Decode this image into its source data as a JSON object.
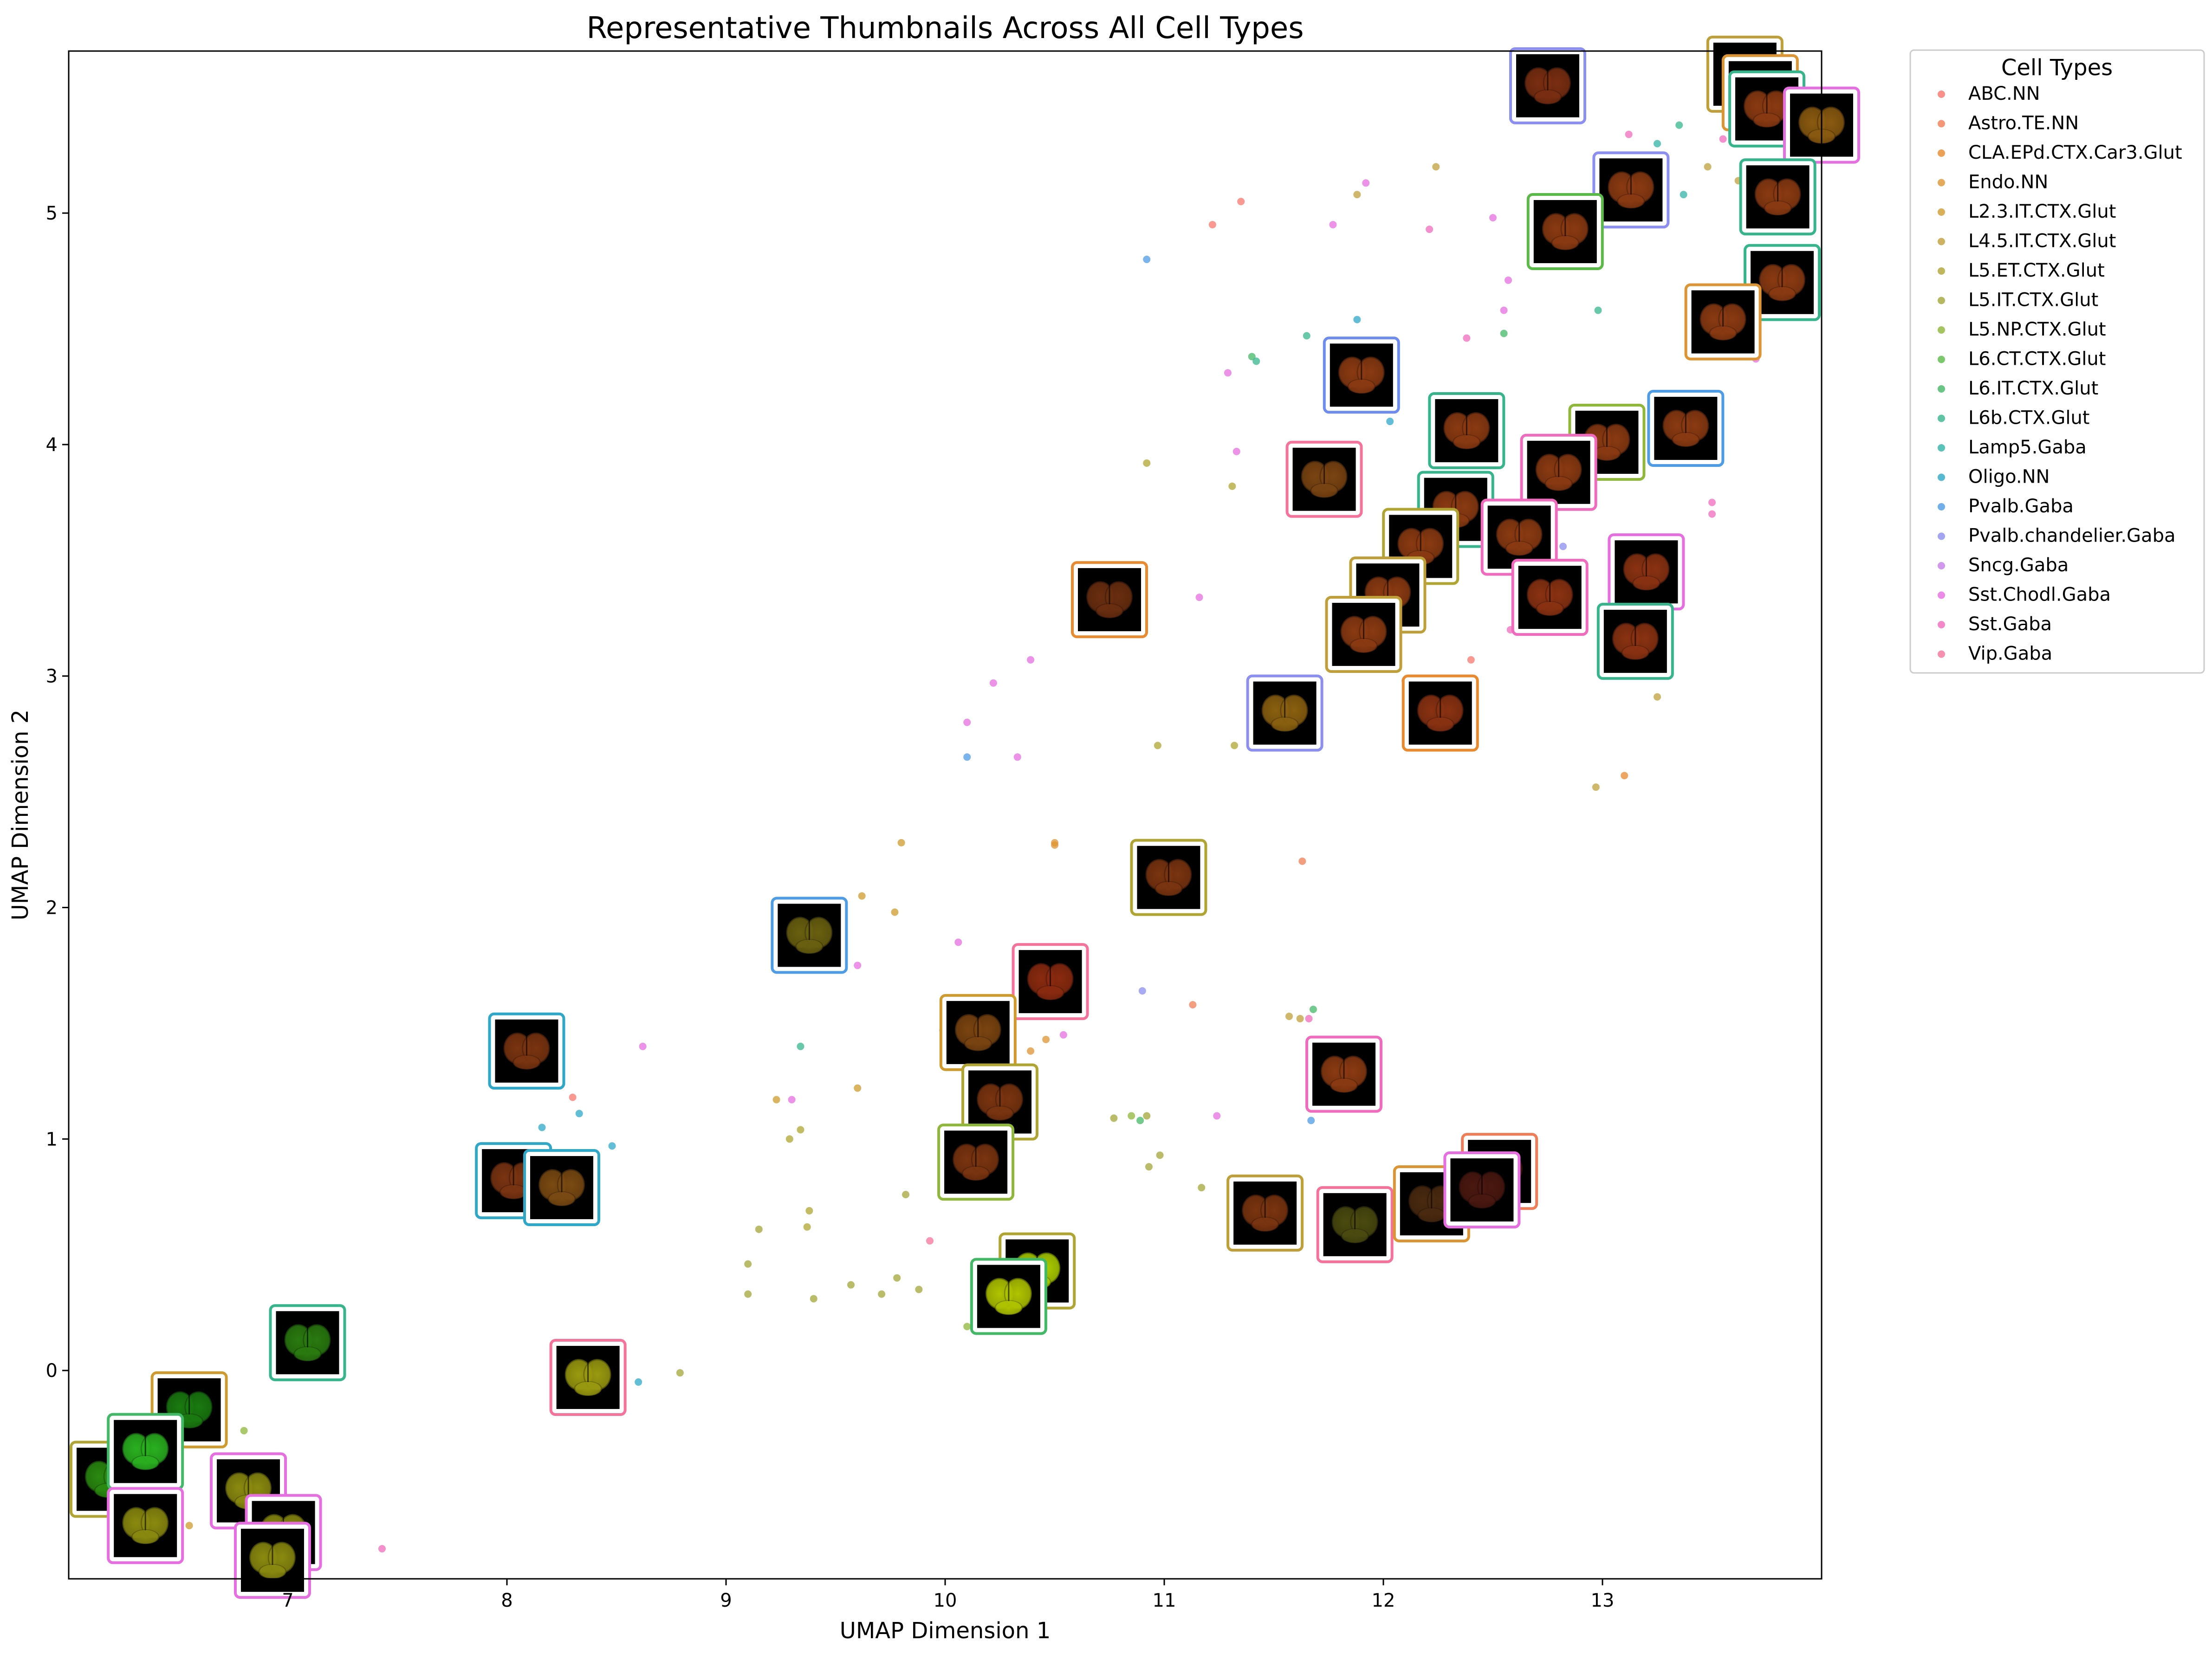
{
  "chart_data": {
    "type": "scatter",
    "title": "Representative Thumbnails Across All Cell Types",
    "xlabel": "UMAP Dimension 1",
    "ylabel": "UMAP Dimension 2",
    "xlim": [
      6.0,
      14.0
    ],
    "ylim": [
      -0.9,
      5.7
    ],
    "xticks": [
      7,
      8,
      9,
      10,
      11,
      12,
      13
    ],
    "yticks": [
      0,
      1,
      2,
      3,
      4,
      5
    ],
    "grid": false,
    "legend": {
      "title": "Cell Types",
      "placement": "outside-top-right"
    },
    "series": [
      {
        "name": "ABC.NN",
        "color": "#f8766d",
        "points": [
          [
            11.35,
            5.05
          ],
          [
            11.22,
            4.95
          ],
          [
            8.3,
            1.18
          ],
          [
            12.4,
            3.07
          ],
          [
            12.43,
            0.97
          ]
        ]
      },
      {
        "name": "Astro.TE.NN",
        "color": "#f07d55",
        "points": [
          [
            11.63,
            2.2
          ],
          [
            11.13,
            1.58
          ],
          [
            12.38,
            0.93
          ],
          [
            12.1,
            2.98
          ]
        ]
      },
      {
        "name": "CLA.EPd.CTX.Car3.Glut",
        "color": "#e88a2d",
        "points": [
          [
            10.78,
            3.42
          ],
          [
            12.25,
            2.85
          ],
          [
            13.62,
            5.42
          ],
          [
            13.1,
            2.57
          ]
        ]
      },
      {
        "name": "Endo.NN",
        "color": "#dd9432",
        "points": [
          [
            10.5,
            2.28
          ],
          [
            10.5,
            2.27
          ],
          [
            10.46,
            1.43
          ],
          [
            10.39,
            1.38
          ],
          [
            13.6,
            5.45
          ]
        ]
      },
      {
        "name": "L2.3.IT.CTX.Glut",
        "color": "#cf9b2e",
        "points": [
          [
            9.8,
            2.28
          ],
          [
            9.62,
            2.05
          ],
          [
            9.77,
            1.98
          ],
          [
            9.23,
            1.17
          ],
          [
            9.6,
            1.22
          ],
          [
            6.92,
            -0.58
          ],
          [
            6.55,
            -0.67
          ]
        ]
      },
      {
        "name": "L4.5.IT.CTX.Glut",
        "color": "#bf9f39",
        "points": [
          [
            12.24,
            5.2
          ],
          [
            11.88,
            5.08
          ],
          [
            13.48,
            5.2
          ],
          [
            13.62,
            5.14
          ],
          [
            13.25,
            2.91
          ],
          [
            12.97,
            2.52
          ],
          [
            11.62,
            1.52
          ],
          [
            11.57,
            1.53
          ]
        ]
      },
      {
        "name": "L5.ET.CTX.Glut",
        "color": "#b0a432",
        "points": [
          [
            10.92,
            3.92
          ],
          [
            11.31,
            3.82
          ],
          [
            11.32,
            2.7
          ],
          [
            10.97,
            2.7
          ],
          [
            9.29,
            1.0
          ],
          [
            9.34,
            1.04
          ],
          [
            9.38,
            0.69
          ],
          [
            9.37,
            0.62
          ]
        ]
      },
      {
        "name": "L5.IT.CTX.Glut",
        "color": "#a3a638",
        "points": [
          [
            9.15,
            0.61
          ],
          [
            9.1,
            0.46
          ],
          [
            9.1,
            0.33
          ],
          [
            9.57,
            0.37
          ],
          [
            9.71,
            0.33
          ],
          [
            9.78,
            0.4
          ],
          [
            9.88,
            0.35
          ],
          [
            9.4,
            0.31
          ],
          [
            9.82,
            0.76
          ],
          [
            10.77,
            1.09
          ],
          [
            10.92,
            1.1
          ],
          [
            10.93,
            0.88
          ],
          [
            10.98,
            0.93
          ],
          [
            11.17,
            0.79
          ],
          [
            8.79,
            -0.01
          ]
        ]
      },
      {
        "name": "L5.NP.CTX.Glut",
        "color": "#8fb73a",
        "points": [
          [
            10.1,
            0.19
          ],
          [
            10.17,
            0.33
          ],
          [
            10.85,
            1.1
          ],
          [
            6.8,
            -0.26
          ]
        ]
      },
      {
        "name": "L6.CT.CTX.Glut",
        "color": "#5bba47",
        "points": [
          [
            6.28,
            -0.4
          ],
          [
            6.25,
            -0.67
          ],
          [
            10.19,
            0.44
          ]
        ]
      },
      {
        "name": "L6.IT.CTX.Glut",
        "color": "#43b867",
        "points": [
          [
            11.4,
            4.38
          ],
          [
            11.68,
            1.56
          ],
          [
            10.89,
            1.08
          ],
          [
            12.55,
            4.48
          ]
        ]
      },
      {
        "name": "L6b.CTX.Glut",
        "color": "#36b58d",
        "points": [
          [
            11.65,
            4.47
          ],
          [
            11.42,
            4.36
          ],
          [
            12.98,
            4.58
          ],
          [
            13.35,
            5.38
          ],
          [
            9.34,
            1.4
          ]
        ]
      },
      {
        "name": "Lamp5.Gaba",
        "color": "#30b3a7",
        "points": [
          [
            13.25,
            5.3
          ],
          [
            13.37,
            5.08
          ]
        ]
      },
      {
        "name": "Oligo.NN",
        "color": "#2ea7c8",
        "points": [
          [
            11.88,
            4.54
          ],
          [
            12.03,
            4.1
          ],
          [
            8.16,
            1.05
          ],
          [
            8.33,
            1.11
          ],
          [
            8.48,
            0.97
          ],
          [
            8.6,
            -0.05
          ]
        ]
      },
      {
        "name": "Pvalb.Gaba",
        "color": "#4e9be6",
        "points": [
          [
            10.92,
            4.8
          ],
          [
            10.1,
            2.65
          ],
          [
            11.67,
            1.08
          ],
          [
            12.0,
            3.2
          ]
        ]
      },
      {
        "name": "Pvalb.chandelier.Gaba",
        "color": "#8c8ef0",
        "points": [
          [
            10.9,
            1.64
          ],
          [
            12.82,
            3.56
          ]
        ]
      },
      {
        "name": "Sncg.Gaba",
        "color": "#c77ee8",
        "points": [
          [
            12.85,
            3.35
          ]
        ]
      },
      {
        "name": "Sst.Chodl.Gaba",
        "color": "#e76ee1",
        "points": [
          [
            11.92,
            5.13
          ],
          [
            11.77,
            4.95
          ],
          [
            12.5,
            4.98
          ],
          [
            12.57,
            4.71
          ],
          [
            12.55,
            4.58
          ],
          [
            11.29,
            4.31
          ],
          [
            11.33,
            3.97
          ],
          [
            11.16,
            3.34
          ],
          [
            10.39,
            3.07
          ],
          [
            10.22,
            2.97
          ],
          [
            10.1,
            2.8
          ],
          [
            10.33,
            2.65
          ],
          [
            9.6,
            1.75
          ],
          [
            10.06,
            1.85
          ],
          [
            10.54,
            1.45
          ],
          [
            9.99,
            1.47
          ],
          [
            8.62,
            1.4
          ],
          [
            9.3,
            1.17
          ],
          [
            11.24,
            1.1
          ],
          [
            13.58,
            5.58
          ],
          [
            13.5,
            5.52
          ],
          [
            13.7,
            4.37
          ]
        ]
      },
      {
        "name": "Sst.Gaba",
        "color": "#f06bbd",
        "points": [
          [
            13.12,
            5.34
          ],
          [
            13.5,
            3.75
          ],
          [
            13.5,
            3.7
          ],
          [
            13.55,
            5.32
          ],
          [
            12.21,
            4.93
          ],
          [
            12.38,
            4.46
          ],
          [
            12.58,
            3.2
          ],
          [
            7.43,
            -0.77
          ],
          [
            11.66,
            1.52
          ],
          [
            12.44,
            3.72
          ]
        ]
      },
      {
        "name": "Vip.Gaba",
        "color": "#f5739b",
        "points": [
          [
            9.93,
            0.56
          ],
          [
            12.48,
            0.88
          ],
          [
            12.4,
            3.95
          ],
          [
            11.73,
            1.23
          ]
        ]
      }
    ]
  },
  "thumbnails": [
    {
      "x": 13.65,
      "y": 5.6,
      "color": "#bf9f39",
      "tint": "#8a3a12"
    },
    {
      "x": 13.72,
      "y": 5.52,
      "color": "#dd9432",
      "tint": "#8a3a12"
    },
    {
      "x": 13.75,
      "y": 5.45,
      "color": "#36b58d",
      "tint": "#8a3a12"
    },
    {
      "x": 14.0,
      "y": 5.38,
      "color": "#e76ee1",
      "tint": "#8a5a10"
    },
    {
      "x": 12.75,
      "y": 5.55,
      "color": "#8c8ef0",
      "tint": "#7a2e12"
    },
    {
      "x": 13.13,
      "y": 5.1,
      "color": "#8c8ef0",
      "tint": "#8a3a12"
    },
    {
      "x": 12.83,
      "y": 4.92,
      "color": "#5bba47",
      "tint": "#8a3a12"
    },
    {
      "x": 13.8,
      "y": 5.07,
      "color": "#36b58d",
      "tint": "#8a3a12"
    },
    {
      "x": 13.82,
      "y": 4.7,
      "color": "#36b58d",
      "tint": "#8a3a12"
    },
    {
      "x": 13.55,
      "y": 4.53,
      "color": "#dd9432",
      "tint": "#8a3a12"
    },
    {
      "x": 11.9,
      "y": 4.3,
      "color": "#6e8cf0",
      "tint": "#8a3a12"
    },
    {
      "x": 12.38,
      "y": 4.06,
      "color": "#36b58d",
      "tint": "#8a3a12"
    },
    {
      "x": 13.02,
      "y": 4.01,
      "color": "#8fb73a",
      "tint": "#8a3a12"
    },
    {
      "x": 13.38,
      "y": 4.07,
      "color": "#4e9be6",
      "tint": "#8a3a12"
    },
    {
      "x": 11.73,
      "y": 3.85,
      "color": "#f5739b",
      "tint": "#7a4412"
    },
    {
      "x": 12.8,
      "y": 3.88,
      "color": "#f06bbd",
      "tint": "#8a3a12"
    },
    {
      "x": 12.33,
      "y": 3.72,
      "color": "#36b58d",
      "tint": "#8a3a12"
    },
    {
      "x": 12.17,
      "y": 3.56,
      "color": "#b0a432",
      "tint": "#8a3a12"
    },
    {
      "x": 12.62,
      "y": 3.6,
      "color": "#f06bbd",
      "tint": "#8a3a12"
    },
    {
      "x": 12.02,
      "y": 3.35,
      "color": "#bf9f39",
      "tint": "#8a3a12"
    },
    {
      "x": 12.76,
      "y": 3.34,
      "color": "#f06bbd",
      "tint": "#8a3212"
    },
    {
      "x": 13.2,
      "y": 3.45,
      "color": "#e76ee1",
      "tint": "#8a3212"
    },
    {
      "x": 13.15,
      "y": 3.15,
      "color": "#36b58d",
      "tint": "#8a3212"
    },
    {
      "x": 11.91,
      "y": 3.18,
      "color": "#bf9f39",
      "tint": "#8a3a12"
    },
    {
      "x": 10.75,
      "y": 3.33,
      "color": "#e88a2d",
      "tint": "#6a2e10"
    },
    {
      "x": 11.55,
      "y": 2.84,
      "color": "#8c8ef0",
      "tint": "#8a6010"
    },
    {
      "x": 12.26,
      "y": 2.84,
      "color": "#e88a2d",
      "tint": "#8a3212"
    },
    {
      "x": 11.02,
      "y": 2.13,
      "color": "#b0a432",
      "tint": "#7a3410"
    },
    {
      "x": 9.38,
      "y": 1.88,
      "color": "#4e9be6",
      "tint": "#6a6010"
    },
    {
      "x": 10.48,
      "y": 1.68,
      "color": "#f5739b",
      "tint": "#8a2a10"
    },
    {
      "x": 10.15,
      "y": 1.46,
      "color": "#cf9b2e",
      "tint": "#7a4410"
    },
    {
      "x": 10.25,
      "y": 1.16,
      "color": "#b0a432",
      "tint": "#7a3410"
    },
    {
      "x": 10.14,
      "y": 0.9,
      "color": "#8fb73a",
      "tint": "#7a3410"
    },
    {
      "x": 11.82,
      "y": 1.28,
      "color": "#f06bbd",
      "tint": "#8a3a12"
    },
    {
      "x": 8.09,
      "y": 1.38,
      "color": "#2ea7c8",
      "tint": "#7a3410"
    },
    {
      "x": 8.03,
      "y": 0.82,
      "color": "#2ea7c8",
      "tint": "#7a3412"
    },
    {
      "x": 8.25,
      "y": 0.79,
      "color": "#2ea7c8",
      "tint": "#7a4a12"
    },
    {
      "x": 11.46,
      "y": 0.68,
      "color": "#bf9f39",
      "tint": "#7a3410"
    },
    {
      "x": 11.87,
      "y": 0.63,
      "color": "#f5739b",
      "tint": "#4a4a10"
    },
    {
      "x": 12.22,
      "y": 0.72,
      "color": "#dd9432",
      "tint": "#4a2a10"
    },
    {
      "x": 12.53,
      "y": 0.86,
      "color": "#f07d55",
      "tint": "#4a2010"
    },
    {
      "x": 12.45,
      "y": 0.78,
      "color": "#e76ee1",
      "tint": "#4a1810"
    },
    {
      "x": 10.42,
      "y": 0.43,
      "color": "#b0a432",
      "tint": "#aacc00"
    },
    {
      "x": 10.29,
      "y": 0.32,
      "color": "#43b867",
      "tint": "#b0c400"
    },
    {
      "x": 7.09,
      "y": 0.12,
      "color": "#36b58d",
      "tint": "#2a7a10"
    },
    {
      "x": 8.37,
      "y": -0.03,
      "color": "#f5739b",
      "tint": "#9a9a10"
    },
    {
      "x": 6.55,
      "y": -0.17,
      "color": "#cf9b2e",
      "tint": "#1a7a10"
    },
    {
      "x": 6.18,
      "y": -0.47,
      "color": "#b0a432",
      "tint": "#2a8a10"
    },
    {
      "x": 6.35,
      "y": -0.35,
      "color": "#43b867",
      "tint": "#2ab020"
    },
    {
      "x": 6.35,
      "y": -0.67,
      "color": "#e76ee1",
      "tint": "#8a8a10"
    },
    {
      "x": 6.82,
      "y": -0.52,
      "color": "#e76ee1",
      "tint": "#8a8a10"
    },
    {
      "x": 6.98,
      "y": -0.7,
      "color": "#e76ee1",
      "tint": "#8a8a10"
    },
    {
      "x": 6.93,
      "y": -0.82,
      "color": "#e76ee1",
      "tint": "#8a8a10"
    }
  ]
}
